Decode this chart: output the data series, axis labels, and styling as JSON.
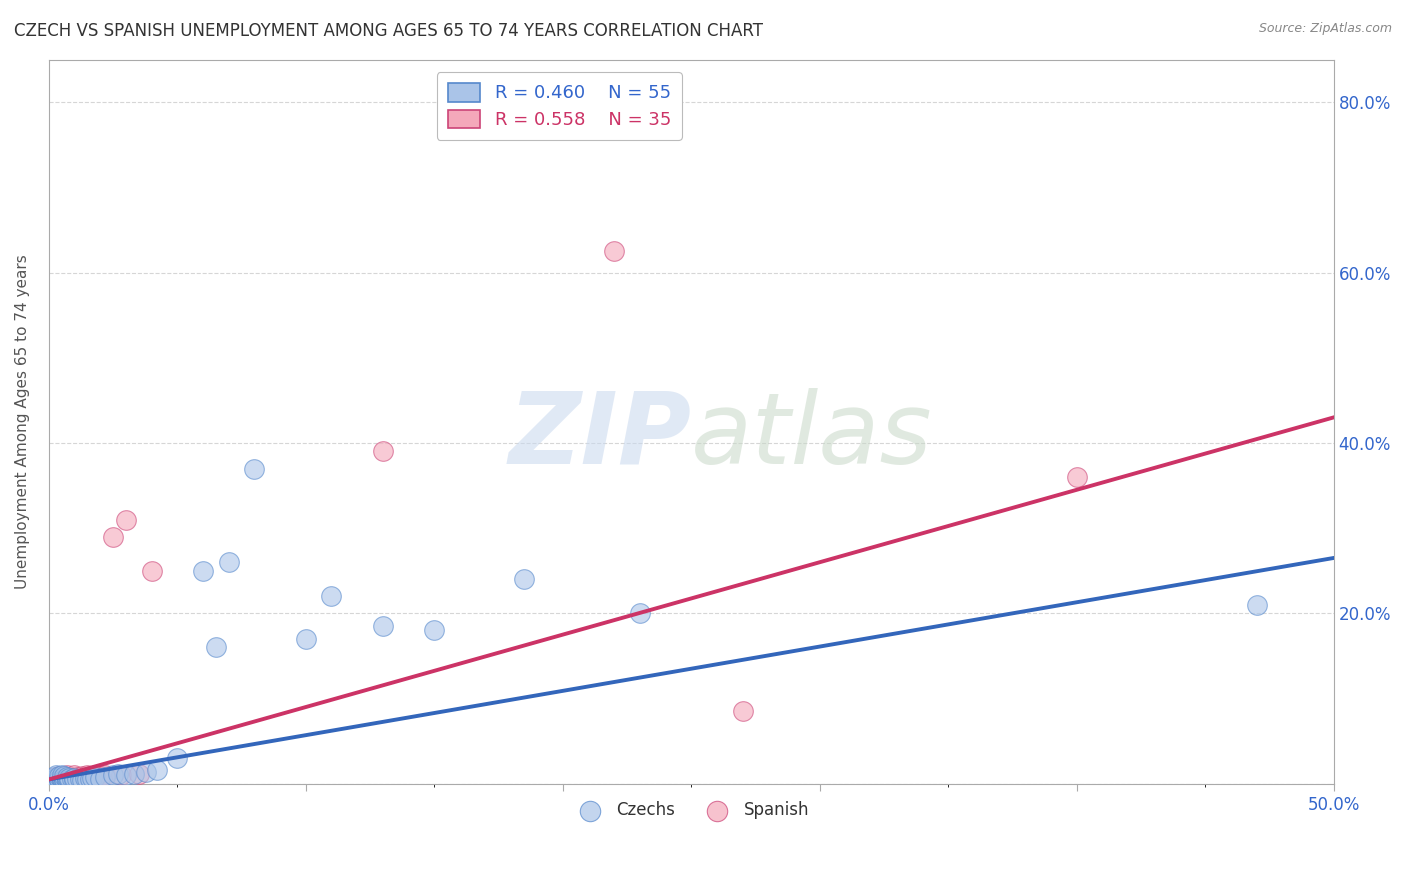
{
  "title": "CZECH VS SPANISH UNEMPLOYMENT AMONG AGES 65 TO 74 YEARS CORRELATION CHART",
  "source": "Source: ZipAtlas.com",
  "ylabel": "Unemployment Among Ages 65 to 74 years",
  "xlim": [
    0.0,
    0.5
  ],
  "ylim": [
    0.0,
    0.85
  ],
  "background_color": "#ffffff",
  "grid_color": "#cccccc",
  "czech_color": "#aac4e8",
  "czech_edge_color": "#5588cc",
  "spanish_color": "#f4a8ba",
  "spanish_edge_color": "#cc4477",
  "czech_line_color": "#3366bb",
  "spanish_line_color": "#cc3366",
  "legend_R_czech": "0.460",
  "legend_N_czech": "55",
  "legend_R_spanish": "0.558",
  "legend_N_spanish": "35",
  "czech_x": [
    0.001,
    0.001,
    0.002,
    0.002,
    0.002,
    0.003,
    0.003,
    0.003,
    0.003,
    0.004,
    0.004,
    0.004,
    0.005,
    0.005,
    0.005,
    0.005,
    0.006,
    0.006,
    0.006,
    0.007,
    0.007,
    0.007,
    0.008,
    0.008,
    0.009,
    0.01,
    0.01,
    0.011,
    0.012,
    0.013,
    0.014,
    0.015,
    0.016,
    0.017,
    0.018,
    0.02,
    0.022,
    0.025,
    0.027,
    0.03,
    0.033,
    0.038,
    0.042,
    0.05,
    0.06,
    0.065,
    0.07,
    0.08,
    0.1,
    0.11,
    0.13,
    0.15,
    0.185,
    0.23,
    0.47
  ],
  "czech_y": [
    0.003,
    0.005,
    0.004,
    0.006,
    0.008,
    0.003,
    0.005,
    0.007,
    0.01,
    0.004,
    0.006,
    0.009,
    0.003,
    0.005,
    0.007,
    0.01,
    0.004,
    0.006,
    0.009,
    0.003,
    0.005,
    0.008,
    0.004,
    0.007,
    0.005,
    0.004,
    0.007,
    0.006,
    0.005,
    0.004,
    0.007,
    0.006,
    0.005,
    0.007,
    0.008,
    0.006,
    0.008,
    0.01,
    0.012,
    0.01,
    0.012,
    0.014,
    0.016,
    0.03,
    0.25,
    0.16,
    0.26,
    0.37,
    0.17,
    0.22,
    0.185,
    0.18,
    0.24,
    0.2,
    0.21
  ],
  "spanish_x": [
    0.001,
    0.002,
    0.002,
    0.003,
    0.003,
    0.004,
    0.004,
    0.005,
    0.005,
    0.006,
    0.007,
    0.007,
    0.008,
    0.009,
    0.01,
    0.01,
    0.011,
    0.012,
    0.013,
    0.014,
    0.015,
    0.016,
    0.017,
    0.018,
    0.02,
    0.022,
    0.025,
    0.028,
    0.03,
    0.035,
    0.04,
    0.13,
    0.22,
    0.27,
    0.4
  ],
  "spanish_y": [
    0.005,
    0.004,
    0.007,
    0.005,
    0.008,
    0.006,
    0.009,
    0.005,
    0.008,
    0.007,
    0.006,
    0.01,
    0.008,
    0.007,
    0.006,
    0.01,
    0.008,
    0.007,
    0.009,
    0.008,
    0.01,
    0.009,
    0.008,
    0.01,
    0.009,
    0.01,
    0.29,
    0.01,
    0.31,
    0.012,
    0.25,
    0.39,
    0.625,
    0.085,
    0.36
  ],
  "czech_line_x": [
    0.0,
    0.5
  ],
  "czech_line_y": [
    0.005,
    0.265
  ],
  "spanish_line_x": [
    0.0,
    0.5
  ],
  "spanish_line_y": [
    0.005,
    0.43
  ]
}
